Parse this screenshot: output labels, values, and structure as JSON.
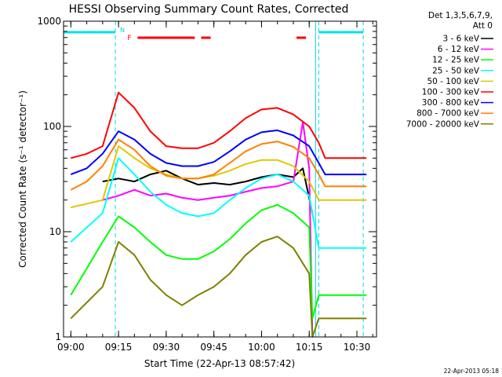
{
  "chart_data": {
    "type": "line",
    "title": "HESSI Observing Summary Count Rates, Corrected",
    "xlabel": "Start Time (22-Apr-13 08:57:42)",
    "ylabel": "Corrected Count Rate (s⁻¹ detector⁻¹)",
    "x_range": [
      "08:57:42",
      "10:36:10"
    ],
    "ylim": [
      1,
      1000
    ],
    "yscale": "log",
    "x_ticks": [
      "09:00",
      "09:15",
      "09:30",
      "09:45",
      "10:00",
      "10:15",
      "10:30"
    ],
    "y_ticks": [
      "1",
      "10",
      "100",
      "1000"
    ],
    "legend_header": [
      "Det 1,3,5,6,7,9,",
      "Att 0"
    ],
    "legend_position": "right",
    "annotations": {
      "night": "N",
      "flare": "F"
    },
    "markers": {
      "night_intervals": [
        [
          "08:57:42",
          "09:14:00"
        ],
        [
          "10:18:00",
          "10:32:00"
        ]
      ],
      "dashed_lines": [
        "09:14:00",
        "10:18:00",
        "10:32:00"
      ],
      "solid_lines": [
        "10:17:00"
      ],
      "flare_bars": [
        [
          "09:21",
          "09:39"
        ],
        [
          "09:41",
          "09:44"
        ],
        [
          "10:11",
          "10:14"
        ]
      ]
    },
    "series": [
      {
        "name": "3 - 6 keV",
        "color": "#000000",
        "x": [
          "09:10",
          "09:15",
          "09:20",
          "09:25",
          "09:30",
          "09:35",
          "09:40",
          "09:45",
          "09:50",
          "09:55",
          "10:00",
          "10:05",
          "10:10",
          "10:13",
          "10:16"
        ],
        "values": [
          30,
          32,
          30,
          35,
          38,
          32,
          28,
          29,
          28,
          30,
          33,
          35,
          33,
          40,
          15
        ]
      },
      {
        "name": "6 - 12 keV",
        "color": "#ff00ff",
        "x": [
          "09:10",
          "09:15",
          "09:20",
          "09:25",
          "09:30",
          "09:35",
          "09:40",
          "09:45",
          "09:50",
          "09:55",
          "10:00",
          "10:05",
          "10:10",
          "10:13",
          "10:15",
          "10:16"
        ],
        "values": [
          20,
          22,
          25,
          22,
          23,
          21,
          20,
          21,
          22,
          24,
          26,
          27,
          30,
          110,
          40,
          1
        ]
      },
      {
        "name": "12 - 25 keV",
        "color": "#00ff00",
        "x": [
          "09:00",
          "09:10",
          "09:15",
          "09:20",
          "09:25",
          "09:30",
          "09:35",
          "09:40",
          "09:45",
          "09:50",
          "09:55",
          "10:00",
          "10:05",
          "10:10",
          "10:15",
          "10:16",
          "10:18",
          "10:33"
        ],
        "values": [
          2.5,
          8,
          14,
          11,
          8,
          6,
          5.5,
          5.5,
          6.5,
          8.5,
          12,
          16,
          18,
          15,
          11,
          1.5,
          2.5,
          2.5
        ]
      },
      {
        "name": "25 - 50 keV",
        "color": "#00ffff",
        "x": [
          "09:00",
          "09:10",
          "09:15",
          "09:20",
          "09:25",
          "09:30",
          "09:35",
          "09:40",
          "09:45",
          "09:50",
          "09:55",
          "10:00",
          "10:05",
          "10:10",
          "10:15",
          "10:18",
          "10:25",
          "10:33"
        ],
        "values": [
          8,
          15,
          50,
          35,
          24,
          18,
          15,
          14,
          15,
          20,
          26,
          32,
          35,
          30,
          22,
          7,
          7,
          7
        ]
      },
      {
        "name": "50 - 100 keV",
        "color": "#e0c800",
        "x": [
          "09:00",
          "09:10",
          "09:15",
          "09:20",
          "09:25",
          "09:30",
          "09:35",
          "09:40",
          "09:45",
          "09:50",
          "09:55",
          "10:00",
          "10:05",
          "10:10",
          "10:15",
          "10:18",
          "10:25",
          "10:33"
        ],
        "values": [
          17,
          20,
          65,
          50,
          40,
          35,
          32,
          32,
          34,
          38,
          44,
          48,
          48,
          42,
          30,
          20,
          20,
          20
        ]
      },
      {
        "name": "100 - 300 keV",
        "color": "#ff0000",
        "x": [
          "09:00",
          "09:05",
          "09:10",
          "09:15",
          "09:20",
          "09:25",
          "09:30",
          "09:35",
          "09:40",
          "09:45",
          "09:50",
          "09:55",
          "10:00",
          "10:05",
          "10:10",
          "10:15",
          "10:18",
          "10:20",
          "10:25",
          "10:33"
        ],
        "values": [
          50,
          55,
          65,
          210,
          150,
          90,
          65,
          62,
          62,
          70,
          90,
          120,
          145,
          150,
          130,
          100,
          70,
          50,
          50,
          50
        ]
      },
      {
        "name": "300 - 800 keV",
        "color": "#0000ff",
        "x": [
          "09:00",
          "09:05",
          "09:10",
          "09:15",
          "09:20",
          "09:25",
          "09:30",
          "09:35",
          "09:40",
          "09:45",
          "09:50",
          "09:55",
          "10:00",
          "10:05",
          "10:10",
          "10:15",
          "10:18",
          "10:20",
          "10:25",
          "10:33"
        ],
        "values": [
          35,
          40,
          55,
          90,
          75,
          55,
          45,
          42,
          42,
          46,
          58,
          75,
          88,
          92,
          82,
          65,
          45,
          35,
          35,
          35
        ]
      },
      {
        "name": "800 - 7000 keV",
        "color": "#ff8000",
        "x": [
          "09:00",
          "09:05",
          "09:10",
          "09:15",
          "09:20",
          "09:25",
          "09:30",
          "09:35",
          "09:40",
          "09:45",
          "09:50",
          "09:55",
          "10:00",
          "10:05",
          "10:10",
          "10:15",
          "10:18",
          "10:20",
          "10:25",
          "10:33"
        ],
        "values": [
          25,
          30,
          42,
          75,
          60,
          42,
          34,
          32,
          32,
          35,
          45,
          58,
          68,
          72,
          64,
          50,
          35,
          27,
          27,
          27
        ]
      },
      {
        "name": "7000 - 20000 keV",
        "color": "#808000",
        "x": [
          "09:00",
          "09:10",
          "09:15",
          "09:20",
          "09:25",
          "09:30",
          "09:35",
          "09:40",
          "09:45",
          "09:50",
          "09:55",
          "10:00",
          "10:05",
          "10:10",
          "10:15",
          "10:16",
          "10:18",
          "10:33"
        ],
        "values": [
          1.5,
          3,
          8,
          6,
          3.5,
          2.5,
          2,
          2.5,
          3,
          4,
          6,
          8,
          9,
          7,
          4,
          1,
          1.5,
          1.5
        ]
      }
    ]
  },
  "footer_stamp": "22-Apr-2013 05:18"
}
